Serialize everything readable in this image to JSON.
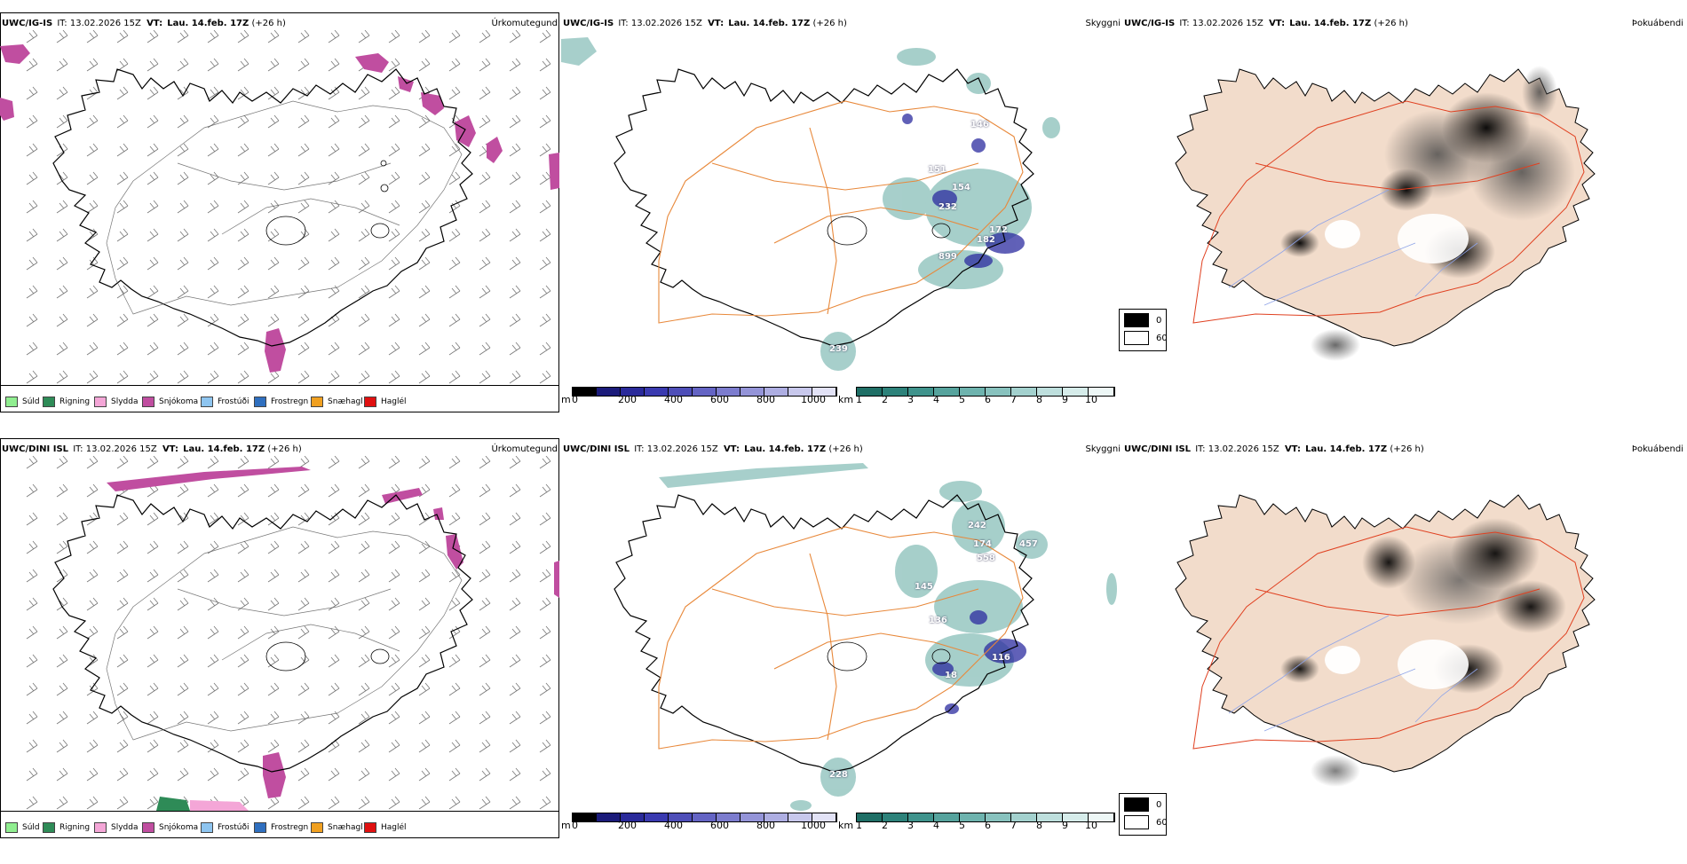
{
  "rows": [
    {
      "model": "UWC/IG-IS",
      "it_label": "IT:",
      "it": "13.02.2026 15Z",
      "vt_label": "VT:",
      "vt": "Lau. 14.feb. 17Z",
      "lead": "(+26 h)",
      "cloud_labels": [
        "146",
        "151",
        "154",
        "232",
        "172",
        "182",
        "899",
        "239"
      ]
    },
    {
      "model": "UWC/DINI ISL",
      "it_label": "IT:",
      "it": "13.02.2026 15Z",
      "vt_label": "VT:",
      "vt": "Lau. 14.feb. 17Z",
      "lead": "(+26 h)",
      "cloud_labels": [
        "242",
        "174",
        "558",
        "457",
        "145",
        "136",
        "116",
        "18",
        "228"
      ]
    }
  ],
  "panels": {
    "precip_type_title": "Úrkomutegund",
    "cloud_base_title": "Skyggni",
    "cloud_cover_title": "Þokuábendi"
  },
  "precip_legend": [
    {
      "label": "Súld",
      "color": "#90ee90"
    },
    {
      "label": "Rigning",
      "color": "#2e8b57"
    },
    {
      "label": "Slydda",
      "color": "#f4a6d7"
    },
    {
      "label": "Snjókoma",
      "color": "#c04ea0"
    },
    {
      "label": "Frostúði",
      "color": "#8ec5f0"
    },
    {
      "label": "Frostregn",
      "color": "#2f6fbf"
    },
    {
      "label": "Snæhagl",
      "color": "#f0a020"
    },
    {
      "label": "Haglél",
      "color": "#e01010"
    }
  ],
  "cloud_base_scale": {
    "unit": "m",
    "ticks": [
      "0",
      "200",
      "400",
      "600",
      "800",
      "1000"
    ],
    "colors": [
      "#000000",
      "#1b1b7a",
      "#2a2a9a",
      "#3a3ab0",
      "#4e4eb8",
      "#6464c4",
      "#7c7cce",
      "#9494d8",
      "#aeaee2",
      "#c8c8ec",
      "#e2e2f6"
    ]
  },
  "visibility_scale": {
    "unit": "km",
    "ticks": [
      "1",
      "2",
      "3",
      "4",
      "5",
      "6",
      "7",
      "8",
      "9",
      "10"
    ],
    "colors": [
      "#1f6f66",
      "#2d827a",
      "#3f938c",
      "#56a39d",
      "#6eb3ae",
      "#88c2be",
      "#a3d1ce",
      "#bedfdd",
      "#d6ecea",
      "#edf7f6"
    ]
  },
  "fog_legend": [
    {
      "label": "0",
      "color": "#000000"
    },
    {
      "label": "60",
      "color": "#ffffff"
    }
  ],
  "colors": {
    "coast": "#000000",
    "road": "#e8883a",
    "road_red": "#e04020",
    "land_tint": "#f2dccb",
    "river": "#8fa4e8",
    "snow": "#c04ea0",
    "cloud_blue": "#2c2ca0",
    "vis_teal": "#5fa8a0"
  }
}
